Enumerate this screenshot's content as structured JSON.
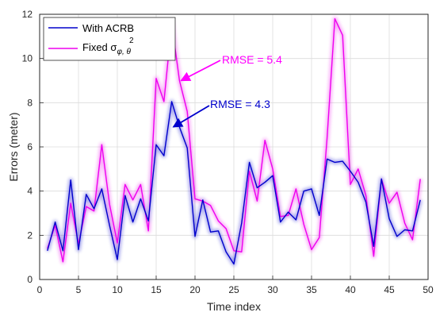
{
  "chart_data": {
    "type": "line",
    "xlabel": "Time index",
    "ylabel": "Errors (meter)",
    "xlim": [
      0,
      50
    ],
    "ylim": [
      0,
      12
    ],
    "xticks": [
      0,
      5,
      10,
      15,
      20,
      25,
      30,
      35,
      40,
      45,
      50
    ],
    "yticks": [
      0,
      2,
      4,
      6,
      8,
      10,
      12
    ],
    "grid": true,
    "legend_position": "top-left",
    "x": [
      1,
      2,
      3,
      4,
      5,
      6,
      7,
      8,
      9,
      10,
      11,
      12,
      13,
      14,
      15,
      16,
      17,
      18,
      19,
      20,
      21,
      22,
      23,
      24,
      25,
      26,
      27,
      28,
      29,
      30,
      31,
      32,
      33,
      34,
      35,
      36,
      37,
      38,
      39,
      40,
      41,
      42,
      43,
      44,
      45,
      46,
      47,
      48,
      49
    ],
    "series": [
      {
        "name": "With ACRB",
        "color": "#0000cc",
        "values": [
          1.3,
          2.6,
          1.3,
          4.5,
          1.35,
          3.85,
          3.2,
          4.1,
          2.45,
          0.9,
          3.8,
          2.6,
          3.65,
          2.65,
          6.1,
          5.6,
          8.05,
          6.9,
          5.95,
          1.95,
          3.6,
          2.15,
          2.2,
          1.25,
          0.7,
          2.55,
          5.3,
          4.15,
          4.4,
          4.7,
          2.6,
          3.05,
          2.7,
          4.0,
          4.1,
          2.9,
          5.45,
          5.3,
          5.35,
          4.9,
          4.4,
          3.5,
          1.5,
          4.55,
          2.75,
          1.95,
          2.25,
          2.2,
          3.6
        ]
      },
      {
        "name": "Fixed σ²φ,θ",
        "legend_main": "Fixed σ",
        "legend_sup": "2",
        "legend_sub": "φ, θ",
        "color": "#ee00ee",
        "values": [
          1.4,
          2.45,
          0.8,
          3.45,
          1.6,
          3.3,
          3.1,
          6.1,
          3.4,
          1.65,
          4.3,
          3.6,
          4.3,
          2.2,
          9.1,
          8.05,
          11.6,
          9.0,
          7.6,
          3.65,
          3.55,
          3.35,
          2.65,
          2.3,
          1.3,
          1.25,
          4.9,
          3.55,
          6.3,
          5.0,
          2.85,
          2.9,
          4.1,
          2.5,
          1.35,
          1.9,
          6.4,
          11.8,
          11.05,
          4.3,
          5.0,
          3.8,
          1.05,
          4.55,
          3.45,
          3.95,
          2.55,
          1.8,
          4.55
        ]
      }
    ],
    "annotations": [
      {
        "text": "RMSE = 5.4",
        "color": "#ff00ff",
        "arrow_target": [
          18.2,
          9.0
        ]
      },
      {
        "text": "RMSE = 4.3",
        "color": "#0000cc",
        "arrow_target": [
          17.2,
          6.9
        ]
      }
    ]
  }
}
